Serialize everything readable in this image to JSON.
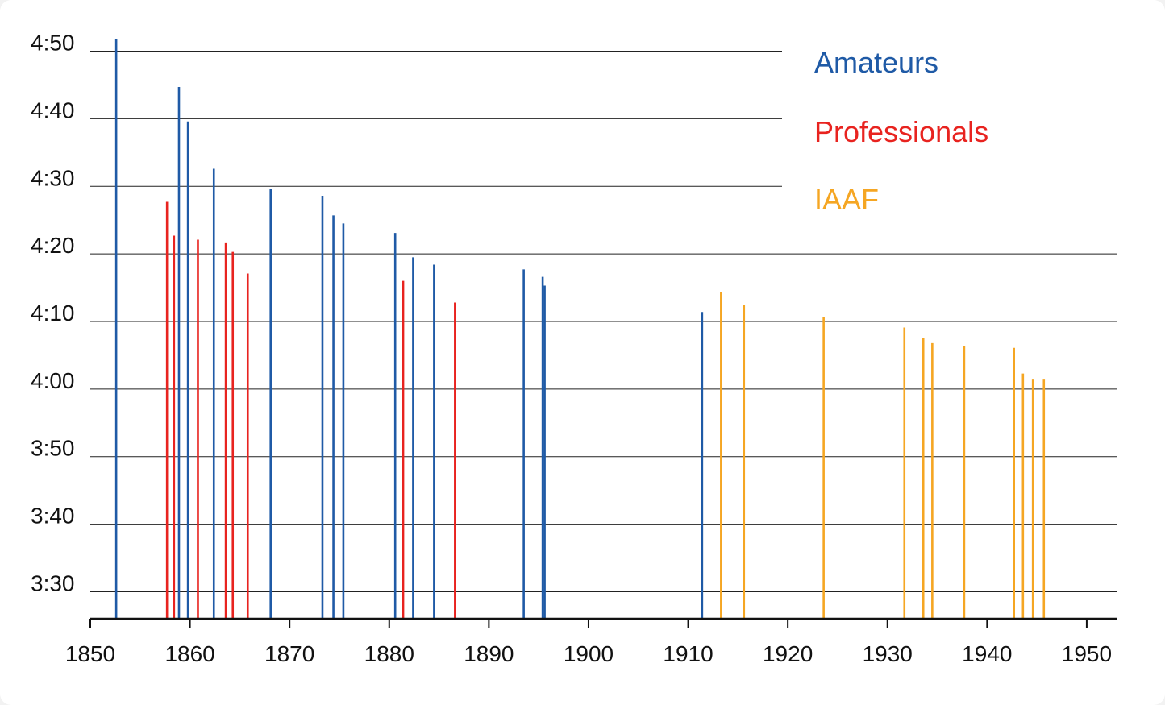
{
  "chart_data": {
    "type": "bar",
    "title": "",
    "xlabel": "",
    "ylabel": "",
    "xlim": [
      1850,
      1953
    ],
    "ylim_seconds": [
      206,
      294
    ],
    "x_ticks": [
      "1850",
      "1860",
      "1870",
      "1880",
      "1890",
      "1900",
      "1910",
      "1920",
      "1930",
      "1940",
      "1950"
    ],
    "y_ticks": [
      "4:50",
      "4:40",
      "4:30",
      "4:20",
      "4:10",
      "4:00",
      "3:50",
      "3:40",
      "3:30"
    ],
    "y_tick_seconds": [
      290,
      280,
      270,
      260,
      250,
      240,
      230,
      220,
      210
    ],
    "gridlines": "horizontal",
    "legend_position": "top-right",
    "series": [
      {
        "name": "Amateurs",
        "color": "#1f5aa6",
        "points": [
          {
            "x": 1852.6,
            "y": 291.8
          },
          {
            "x": 1858.9,
            "y": 284.7
          },
          {
            "x": 1859.8,
            "y": 279.6
          },
          {
            "x": 1862.4,
            "y": 272.6
          },
          {
            "x": 1868.1,
            "y": 269.6
          },
          {
            "x": 1873.3,
            "y": 268.6
          },
          {
            "x": 1874.4,
            "y": 265.7
          },
          {
            "x": 1875.4,
            "y": 264.5
          },
          {
            "x": 1880.6,
            "y": 263.1
          },
          {
            "x": 1882.4,
            "y": 259.5
          },
          {
            "x": 1884.5,
            "y": 258.4
          },
          {
            "x": 1893.5,
            "y": 257.7
          },
          {
            "x": 1895.4,
            "y": 256.6
          },
          {
            "x": 1895.6,
            "y": 255.3
          },
          {
            "x": 1911.4,
            "y": 251.4
          }
        ]
      },
      {
        "name": "Professionals",
        "color": "#e8231f",
        "points": [
          {
            "x": 1857.7,
            "y": 267.7
          },
          {
            "x": 1858.4,
            "y": 262.7
          },
          {
            "x": 1860.8,
            "y": 262.1
          },
          {
            "x": 1863.6,
            "y": 261.7
          },
          {
            "x": 1864.3,
            "y": 260.3
          },
          {
            "x": 1865.8,
            "y": 257.1
          },
          {
            "x": 1881.4,
            "y": 256.0
          },
          {
            "x": 1886.6,
            "y": 252.8
          }
        ]
      },
      {
        "name": "IAAF",
        "color": "#f5a623",
        "points": [
          {
            "x": 1913.3,
            "y": 254.4
          },
          {
            "x": 1915.6,
            "y": 252.4
          },
          {
            "x": 1923.6,
            "y": 250.6
          },
          {
            "x": 1931.7,
            "y": 249.1
          },
          {
            "x": 1933.6,
            "y": 247.5
          },
          {
            "x": 1934.5,
            "y": 246.8
          },
          {
            "x": 1937.7,
            "y": 246.4
          },
          {
            "x": 1942.7,
            "y": 246.1
          },
          {
            "x": 1943.6,
            "y": 242.3
          },
          {
            "x": 1944.6,
            "y": 241.4
          },
          {
            "x": 1945.7,
            "y": 241.4
          }
        ]
      }
    ]
  }
}
